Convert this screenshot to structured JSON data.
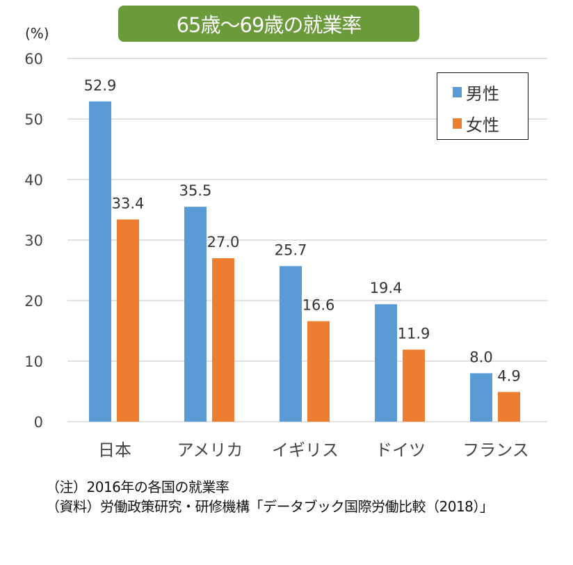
{
  "chart_data": {
    "type": "bar",
    "title": "65歳～69歳の就業率",
    "ylabel": "(%)",
    "ylim": [
      0,
      60
    ],
    "yticks": [
      0,
      10,
      20,
      30,
      40,
      50,
      60
    ],
    "grid": true,
    "legend_position": "top-right",
    "categories": [
      "日本",
      "アメリカ",
      "イギリス",
      "ドイツ",
      "フランス"
    ],
    "series": [
      {
        "name": "男性",
        "color": "#5b9bd5",
        "values": [
          52.9,
          35.5,
          25.7,
          19.4,
          8.0
        ],
        "labels": [
          "52.9",
          "35.5",
          "25.7",
          "19.4",
          "8.0"
        ]
      },
      {
        "name": "女性",
        "color": "#ed7d31",
        "values": [
          33.4,
          27.0,
          16.6,
          11.9,
          4.9
        ],
        "labels": [
          "33.4",
          "27.0",
          "16.6",
          "11.9",
          "4.9"
        ]
      }
    ]
  },
  "notes": {
    "note": "（注）2016年の各国の就業率",
    "source": "（資料）労働政策研究・研修機構「データブック国際労働比較（2018）」"
  },
  "title_bg_color": "#6a9a3a"
}
